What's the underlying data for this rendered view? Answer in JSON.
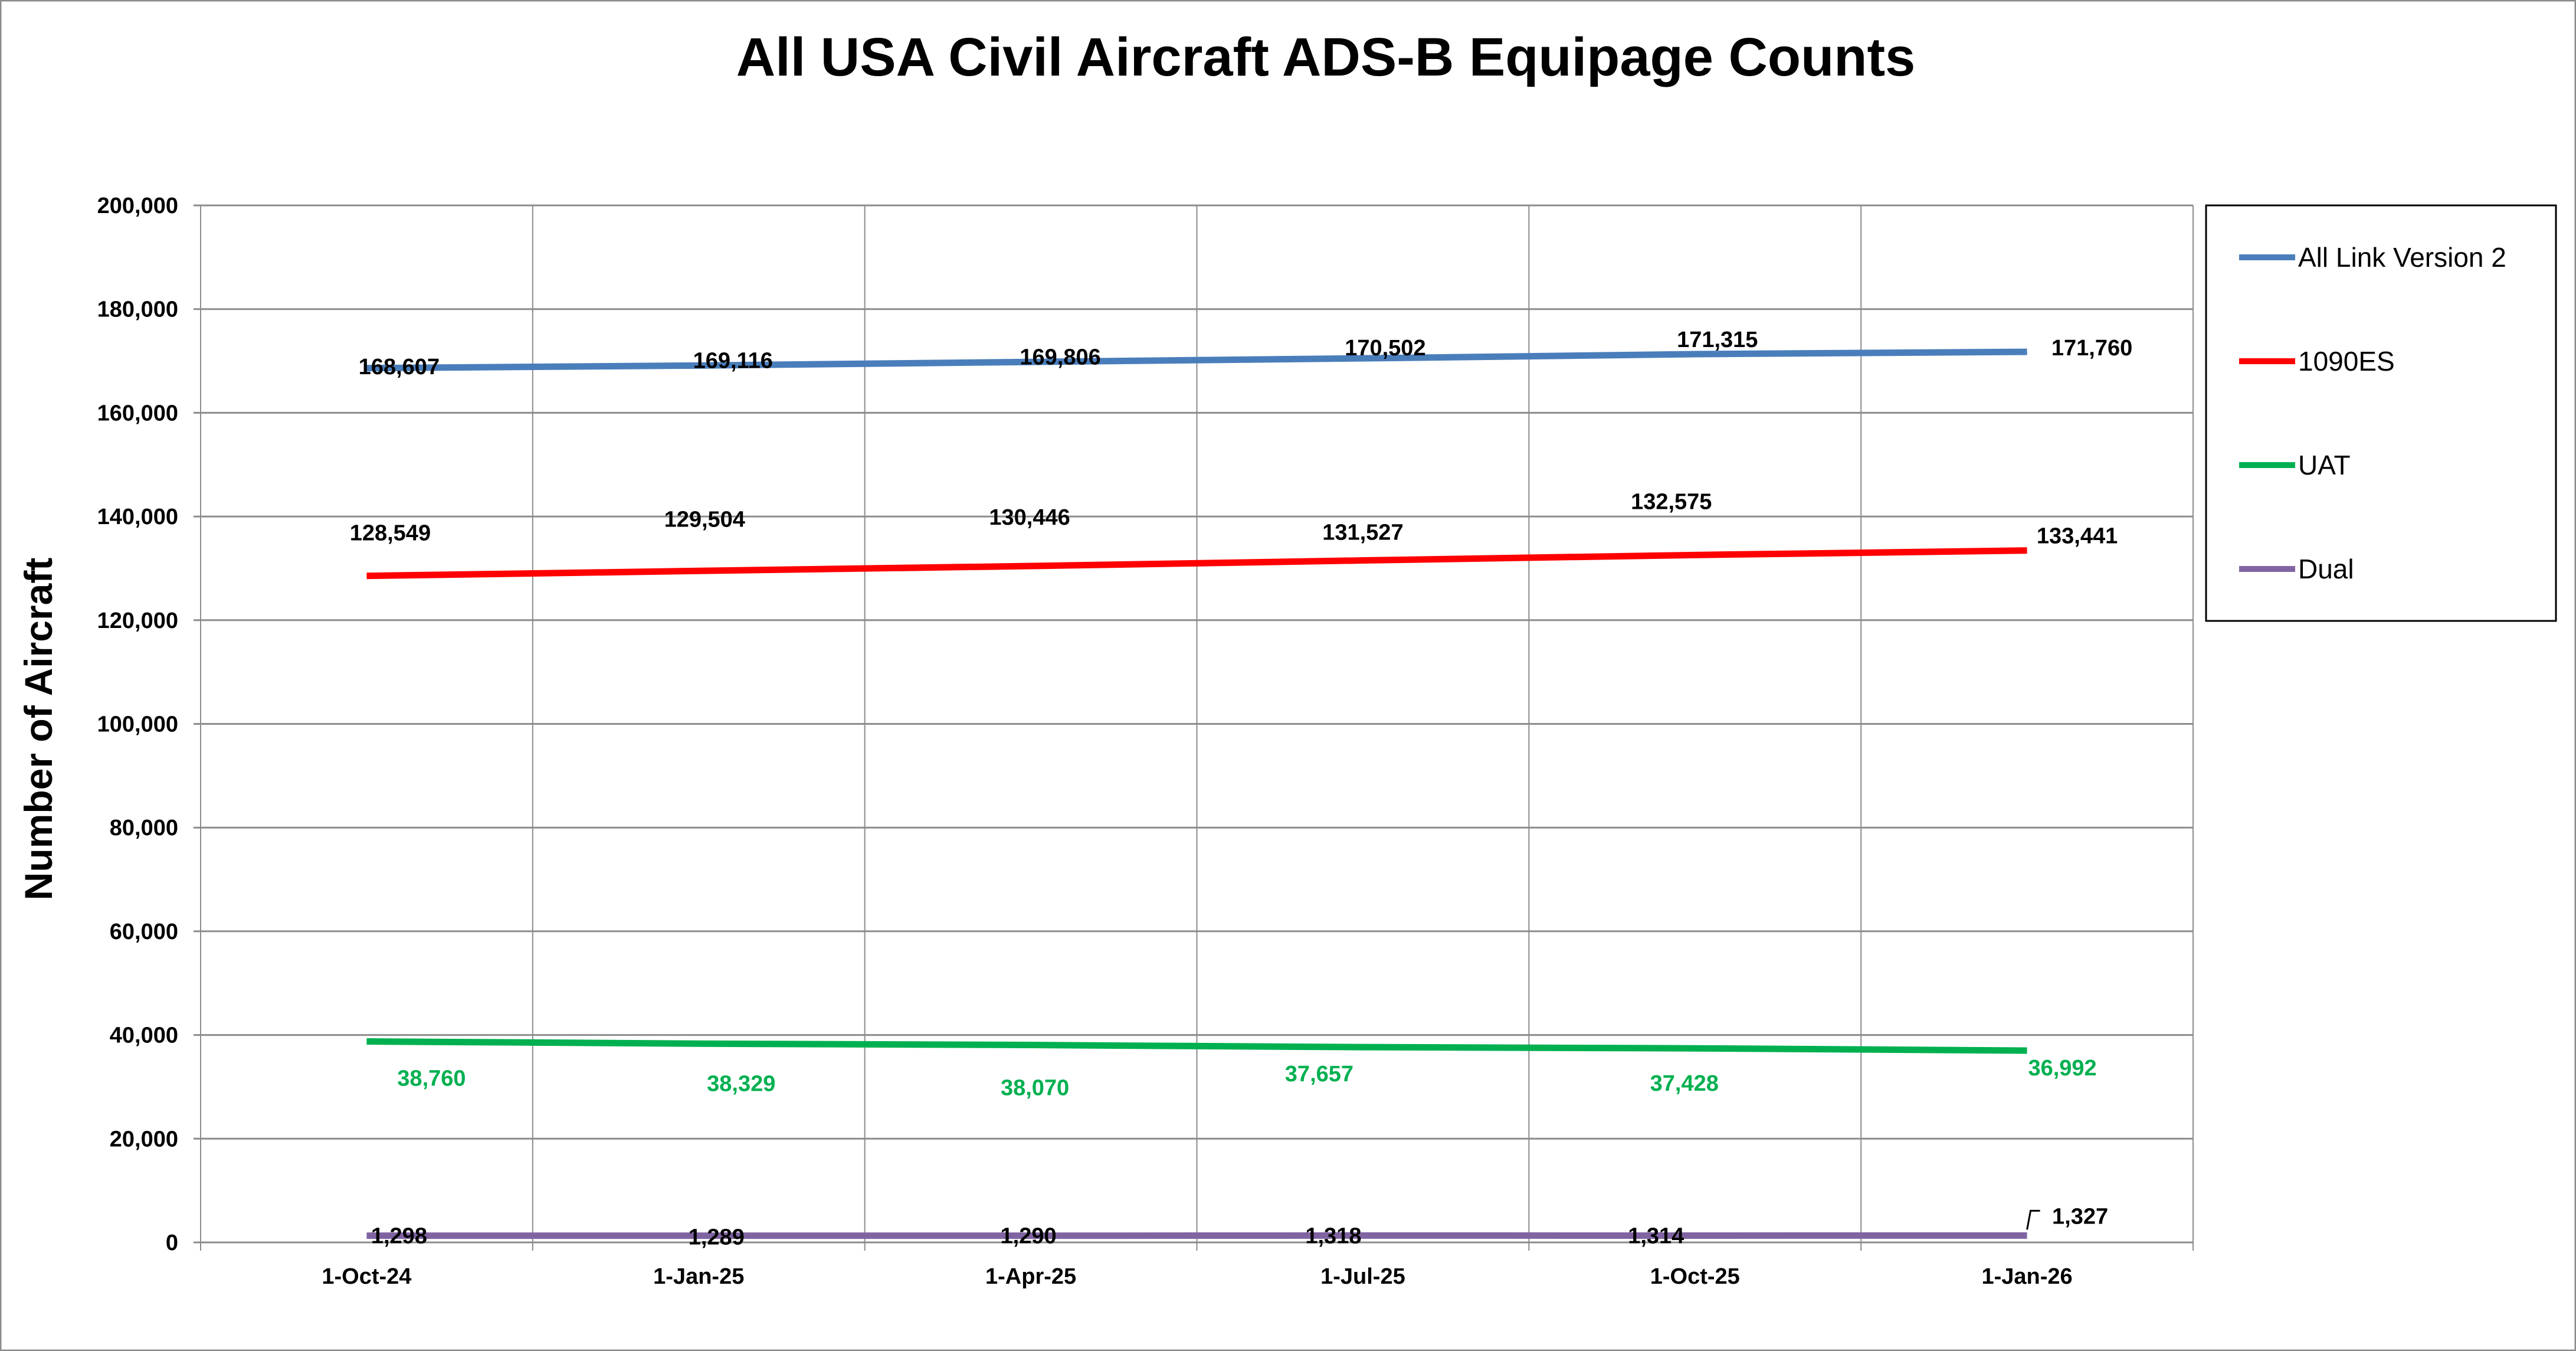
{
  "chart_data": {
    "type": "line",
    "title": "All USA Civil Aircraft ADS-B Equipage Counts",
    "xlabel": "",
    "ylabel": "Number of Aircraft",
    "categories": [
      "1-Oct-24",
      "1-Jan-25",
      "1-Apr-25",
      "1-Jul-25",
      "1-Oct-25",
      "1-Jan-26"
    ],
    "ylim": [
      0,
      200000
    ],
    "yticks": [
      "0",
      "20,000",
      "40,000",
      "60,000",
      "80,000",
      "100,000",
      "120,000",
      "140,000",
      "160,000",
      "180,000",
      "200,000"
    ],
    "grid": true,
    "legend": "right",
    "series": [
      {
        "name": "All Link Version 2",
        "color": "#4a7ebb",
        "label_color": "#000000",
        "values": [
          168607,
          169116,
          169806,
          170502,
          171315,
          171760
        ],
        "labels": [
          "168,607",
          "169,116",
          "169,806",
          "170,502",
          "171,315",
          "171,760"
        ]
      },
      {
        "name": "1090ES",
        "color": "#ff0000",
        "label_color": "#000000",
        "values": [
          128549,
          129504,
          130446,
          131527,
          132575,
          133441
        ],
        "labels": [
          "128,549",
          "129,504",
          "130,446",
          "131,527",
          "132,575",
          "133,441"
        ]
      },
      {
        "name": "UAT",
        "color": "#00b050",
        "label_color": "#00b050",
        "values": [
          38760,
          38329,
          38070,
          37657,
          37428,
          36992
        ],
        "labels": [
          "38,760",
          "38,329",
          "38,070",
          "37,657",
          "37,428",
          "36,992"
        ]
      },
      {
        "name": "Dual",
        "color": "#8064a2",
        "label_color": "#000000",
        "values": [
          1298,
          1289,
          1290,
          1318,
          1314,
          1327
        ],
        "labels": [
          "1,298",
          "1,289",
          "1,290",
          "1,318",
          "1,314",
          "1,327"
        ]
      }
    ]
  }
}
